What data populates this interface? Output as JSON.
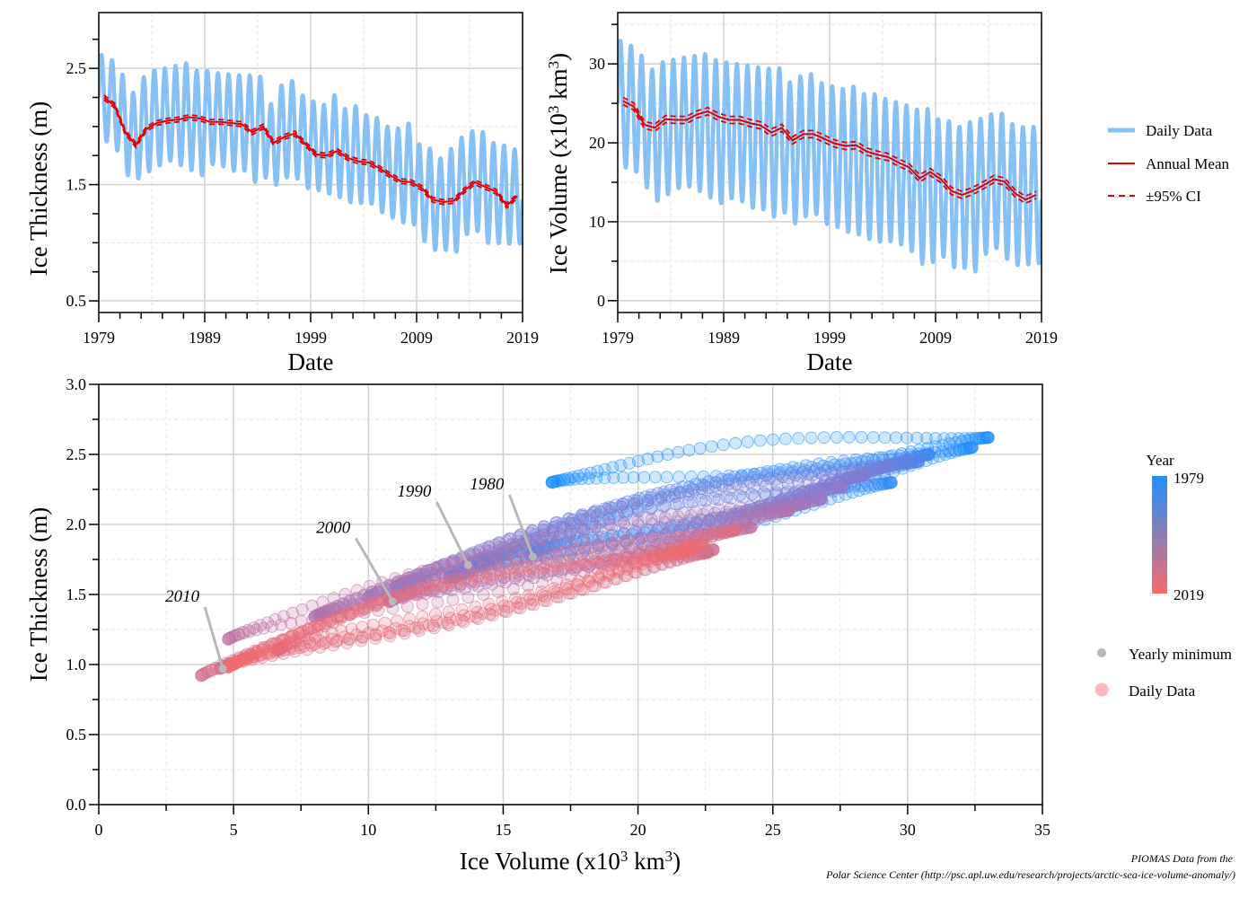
{
  "chart_data": [
    {
      "id": "thickness",
      "type": "line",
      "xlabel": "Date",
      "ylabel": "Ice Thickness (m)",
      "xlim": [
        1979,
        2019
      ],
      "ylim": [
        0.4,
        2.98
      ],
      "x_ticks": [
        "1979",
        "1989",
        "1999",
        "2009",
        "2019"
      ],
      "y_ticks": [
        "0.5",
        "1.5",
        "2.5"
      ],
      "grid": true,
      "daily_envelope": {
        "year": [
          1979,
          1980,
          1981,
          1982,
          1983,
          1984,
          1985,
          1986,
          1987,
          1988,
          1989,
          1990,
          1991,
          1992,
          1993,
          1994,
          1995,
          1996,
          1997,
          1998,
          1999,
          2000,
          2001,
          2002,
          2003,
          2004,
          2005,
          2006,
          2007,
          2008,
          2009,
          2010,
          2011,
          2012,
          2013,
          2014,
          2015,
          2016,
          2017,
          2018,
          2019
        ],
        "max": [
          2.62,
          2.58,
          2.46,
          2.28,
          2.42,
          2.48,
          2.5,
          2.52,
          2.55,
          2.48,
          2.48,
          2.46,
          2.45,
          2.44,
          2.44,
          2.45,
          2.18,
          2.35,
          2.4,
          2.27,
          2.22,
          2.18,
          2.28,
          2.15,
          2.18,
          2.1,
          2.08,
          2.0,
          1.98,
          2.04,
          1.85,
          1.82,
          1.72,
          1.8,
          1.9,
          1.96,
          1.96,
          1.86,
          1.84,
          1.8,
          1.86
        ],
        "min": [
          1.88,
          1.82,
          1.62,
          1.52,
          1.6,
          1.66,
          1.7,
          1.66,
          1.64,
          1.58,
          1.68,
          1.66,
          1.62,
          1.62,
          1.52,
          1.62,
          1.46,
          1.55,
          1.58,
          1.48,
          1.46,
          1.4,
          1.42,
          1.34,
          1.36,
          1.34,
          1.28,
          1.22,
          1.16,
          1.2,
          1.02,
          0.96,
          0.92,
          0.9,
          1.06,
          1.1,
          1.02,
          1.0,
          1.0,
          0.98,
          0.98
        ]
      },
      "series": [
        {
          "name": "Annual Mean",
          "x": [
            1979,
            1980,
            1981,
            1982,
            1983,
            1984,
            1985,
            1986,
            1987,
            1988,
            1989,
            1990,
            1991,
            1992,
            1993,
            1994,
            1995,
            1996,
            1997,
            1998,
            1999,
            2000,
            2001,
            2002,
            2003,
            2004,
            2005,
            2006,
            2007,
            2008,
            2009,
            2010,
            2011,
            2012,
            2013,
            2014,
            2015,
            2016,
            2017,
            2018
          ],
          "values": [
            2.25,
            2.18,
            1.95,
            1.84,
            1.98,
            2.03,
            2.05,
            2.06,
            2.08,
            2.07,
            2.04,
            2.04,
            2.03,
            2.02,
            1.95,
            2.0,
            1.86,
            1.91,
            1.94,
            1.85,
            1.76,
            1.75,
            1.79,
            1.73,
            1.7,
            1.69,
            1.64,
            1.58,
            1.53,
            1.52,
            1.47,
            1.37,
            1.35,
            1.36,
            1.45,
            1.52,
            1.48,
            1.44,
            1.32,
            1.4
          ],
          "ci": 0.02
        }
      ]
    },
    {
      "id": "volume",
      "type": "line",
      "xlabel": "Date",
      "ylabel_main": "Ice Volume (x10",
      "ylabel_sup": "3",
      "ylabel_end": " km",
      "ylabel_sup2": "3",
      "ylabel_close": ")",
      "xlim": [
        1979,
        2019
      ],
      "ylim": [
        -1.5,
        36.5
      ],
      "x_ticks": [
        "1979",
        "1989",
        "1999",
        "2009",
        "2019"
      ],
      "y_ticks": [
        "0",
        "10",
        "20",
        "30"
      ],
      "grid": true,
      "daily_envelope": {
        "year": [
          1979,
          1980,
          1981,
          1982,
          1983,
          1984,
          1985,
          1986,
          1987,
          1988,
          1989,
          1990,
          1991,
          1992,
          1993,
          1994,
          1995,
          1996,
          1997,
          1998,
          1999,
          2000,
          2001,
          2002,
          2003,
          2004,
          2005,
          2006,
          2007,
          2008,
          2009,
          2010,
          2011,
          2012,
          2013,
          2014,
          2015,
          2016,
          2017,
          2018,
          2019
        ],
        "max": [
          33.0,
          32.4,
          31.2,
          29.2,
          30.2,
          30.5,
          30.8,
          31.0,
          31.3,
          30.5,
          30.2,
          30.0,
          29.8,
          29.6,
          29.4,
          29.6,
          27.6,
          28.4,
          28.8,
          27.6,
          27.2,
          26.8,
          27.2,
          26.2,
          26.2,
          25.6,
          25.2,
          24.8,
          24.2,
          24.4,
          23.0,
          22.8,
          22.0,
          22.6,
          23.0,
          23.6,
          23.8,
          22.4,
          22.0,
          22.0,
          22.6
        ],
        "min": [
          17.0,
          16.6,
          14.8,
          12.4,
          13.4,
          14.2,
          14.4,
          13.8,
          13.2,
          12.4,
          13.0,
          12.6,
          11.8,
          11.6,
          10.6,
          11.6,
          9.6,
          10.6,
          11.2,
          9.8,
          9.4,
          8.6,
          8.6,
          7.8,
          7.6,
          7.6,
          7.2,
          6.4,
          4.6,
          5.2,
          5.6,
          4.4,
          4.0,
          3.6,
          5.8,
          6.6,
          5.6,
          4.6,
          4.6,
          4.6,
          4.8
        ]
      },
      "series": [
        {
          "name": "Annual Mean",
          "x": [
            1979,
            1980,
            1981,
            1982,
            1983,
            1984,
            1985,
            1986,
            1987,
            1988,
            1989,
            1990,
            1991,
            1992,
            1993,
            1994,
            1995,
            1996,
            1997,
            1998,
            1999,
            2000,
            2001,
            2002,
            2003,
            2004,
            2005,
            2006,
            2007,
            2008,
            2009,
            2010,
            2011,
            2012,
            2013,
            2014,
            2015,
            2016,
            2017,
            2018
          ],
          "values": [
            25.3,
            24.6,
            22.3,
            21.9,
            23.0,
            22.9,
            22.9,
            23.6,
            24.0,
            23.3,
            22.9,
            22.9,
            22.5,
            22.2,
            21.3,
            21.9,
            20.3,
            21.1,
            21.1,
            20.5,
            19.9,
            19.6,
            19.7,
            18.9,
            18.5,
            18.2,
            17.5,
            16.9,
            15.5,
            16.3,
            15.4,
            13.9,
            13.4,
            13.9,
            14.6,
            15.4,
            15.1,
            13.6,
            12.8,
            13.4
          ],
          "ci": 0.45
        }
      ]
    },
    {
      "id": "phase",
      "type": "scatter",
      "xlabel_main": "Ice Volume (x10",
      "xlabel_sup": "3",
      "xlabel_end": " km",
      "xlabel_sup2": "3",
      "xlabel_close": ")",
      "ylabel": "Ice Thickness (m)",
      "xlim": [
        0,
        35
      ],
      "ylim": [
        0,
        3
      ],
      "x_ticks": [
        "0",
        "5",
        "10",
        "15",
        "20",
        "25",
        "30",
        "35"
      ],
      "y_ticks": [
        "0.0",
        "0.5",
        "1.0",
        "1.5",
        "2.0",
        "2.5",
        "3.0"
      ],
      "grid": true,
      "year_range": [
        1979,
        2019
      ],
      "yearly_loops": [
        {
          "year": 1979,
          "vmin": 16.8,
          "vmax": 33.0,
          "tmin": 2.3,
          "tmax": 2.62
        },
        {
          "year": 1980,
          "vmin": 16.0,
          "vmax": 32.4,
          "tmin": 1.78,
          "tmax": 2.55
        },
        {
          "year": 1982,
          "vmin": 13.2,
          "vmax": 29.4,
          "tmin": 1.62,
          "tmax": 2.3
        },
        {
          "year": 1985,
          "vmin": 14.2,
          "vmax": 30.8,
          "tmin": 1.72,
          "tmax": 2.5
        },
        {
          "year": 1988,
          "vmin": 13.0,
          "vmax": 30.4,
          "tmin": 1.62,
          "tmax": 2.45
        },
        {
          "year": 1990,
          "vmin": 13.6,
          "vmax": 30.0,
          "tmin": 1.7,
          "tmax": 2.45
        },
        {
          "year": 1993,
          "vmin": 11.2,
          "vmax": 29.4,
          "tmin": 1.55,
          "tmax": 2.42
        },
        {
          "year": 1996,
          "vmin": 11.0,
          "vmax": 28.4,
          "tmin": 1.55,
          "tmax": 2.35
        },
        {
          "year": 1998,
          "vmin": 10.0,
          "vmax": 27.6,
          "tmin": 1.48,
          "tmax": 2.27
        },
        {
          "year": 2000,
          "vmin": 10.8,
          "vmax": 26.8,
          "tmin": 1.45,
          "tmax": 2.18
        },
        {
          "year": 2002,
          "vmin": 8.2,
          "vmax": 26.2,
          "tmin": 1.35,
          "tmax": 2.15
        },
        {
          "year": 2004,
          "vmin": 8.0,
          "vmax": 25.6,
          "tmin": 1.34,
          "tmax": 2.1
        },
        {
          "year": 2007,
          "vmin": 4.8,
          "vmax": 24.2,
          "tmin": 1.18,
          "tmax": 1.98
        },
        {
          "year": 2010,
          "vmin": 4.5,
          "vmax": 22.8,
          "tmin": 0.97,
          "tmax": 1.82
        },
        {
          "year": 2012,
          "vmin": 3.8,
          "vmax": 22.6,
          "tmin": 0.92,
          "tmax": 1.8
        },
        {
          "year": 2014,
          "vmin": 6.6,
          "vmax": 23.6,
          "tmin": 1.1,
          "tmax": 1.96
        },
        {
          "year": 2016,
          "vmin": 5.0,
          "vmax": 22.4,
          "tmin": 1.0,
          "tmax": 1.86
        },
        {
          "year": 2018,
          "vmin": 4.8,
          "vmax": 22.0,
          "tmin": 0.98,
          "tmax": 1.82
        }
      ],
      "annotations": [
        {
          "label": "1980",
          "point": [
            16.1,
            1.77
          ],
          "label_at": [
            14.9,
            2.25
          ]
        },
        {
          "label": "1990",
          "point": [
            13.7,
            1.71
          ],
          "label_at": [
            12.2,
            2.2
          ]
        },
        {
          "label": "2000",
          "point": [
            10.9,
            1.45
          ],
          "label_at": [
            9.2,
            1.94
          ]
        },
        {
          "label": "2010",
          "point": [
            4.6,
            0.97
          ],
          "label_at": [
            3.6,
            1.45
          ]
        }
      ]
    }
  ],
  "legends": {
    "top": {
      "items": [
        {
          "label": "Daily Data",
          "color": "#86c0f5",
          "style": "thick"
        },
        {
          "label": "Annual Mean",
          "color": "#e00000",
          "style": "solid"
        },
        {
          "label": "±95% CI",
          "color": "#e00000",
          "style": "dashed"
        }
      ]
    },
    "year_bar": {
      "title": "Year",
      "top_label": "1979",
      "bottom_label": "2019",
      "top_color": "#1e90ff",
      "bottom_color": "#f76b6b"
    },
    "bottom": {
      "items": [
        {
          "label": "Yearly minimum",
          "color": "#b8b8b8"
        },
        {
          "label": "Daily Data",
          "color": "#f7a3a8"
        }
      ]
    }
  },
  "credit": {
    "line1": "PIOMAS Data from the",
    "line2": "Polar Science Center (http://psc.apl.uw.edu/research/projects/arctic-sea-ice-volume-anomaly/)"
  },
  "colors": {
    "daily": "#86c0f5",
    "mean": "#e00000",
    "grid_major": "#d0d0d0",
    "grid_minor": "#e6e6e6",
    "minimum": "#b8b8b8"
  }
}
